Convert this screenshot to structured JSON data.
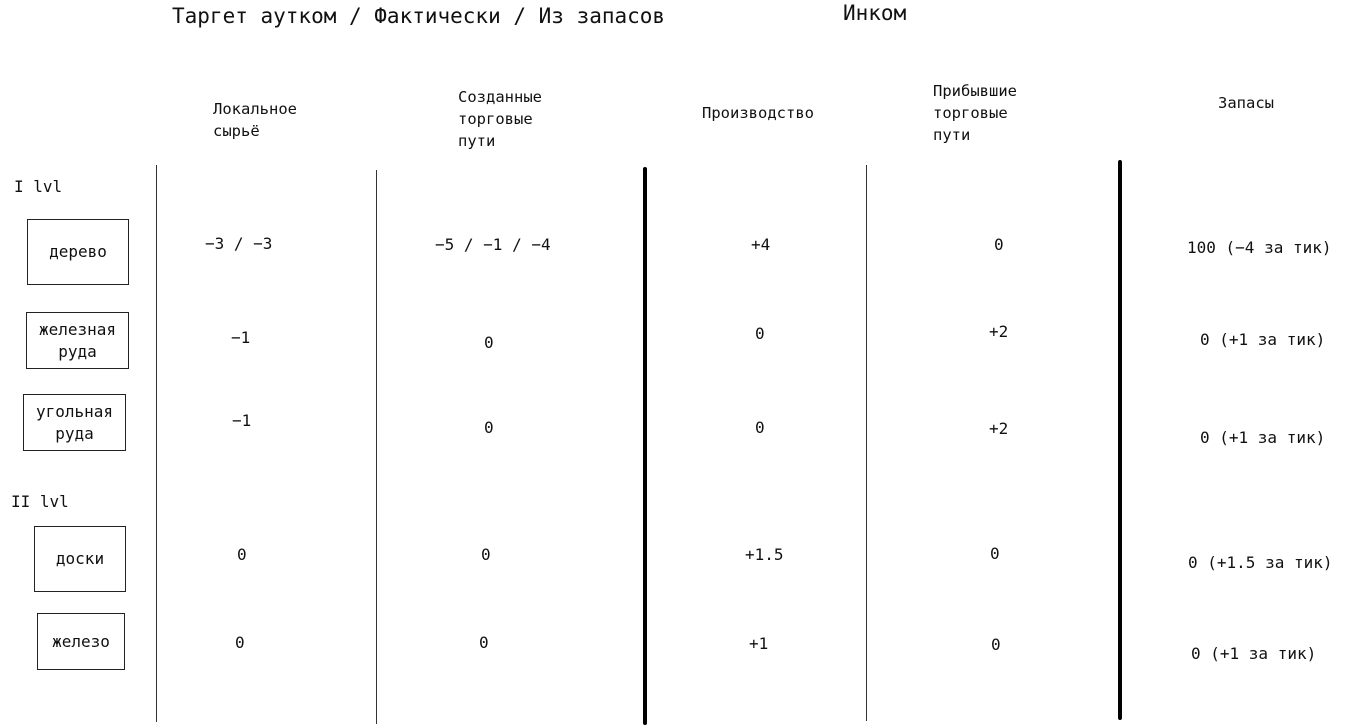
{
  "title": "Таргет аутком / Фактически / Из запасов",
  "nation": "Инком",
  "headers": {
    "local": "Локальное\nсырьё",
    "created": "Созданные\nторговые\nпути",
    "production": "Производство",
    "arrived": "Прибывшие\nторговые\nпути",
    "stock": "Запасы"
  },
  "levels": {
    "l1": "I lvl",
    "l2": "II lvl"
  },
  "rows": [
    {
      "name": "дерево",
      "local": "−3 / −3",
      "created": "−5 / −1 / −4",
      "production": "+4",
      "arrived": "0",
      "stock": "100 (−4 за тик)"
    },
    {
      "name": "железная\nруда",
      "local": "−1",
      "created": "0",
      "production": "0",
      "arrived": "+2",
      "stock": "0 (+1 за тик)"
    },
    {
      "name": "угольная\nруда",
      "local": "−1",
      "created": "0",
      "production": "0",
      "arrived": "+2",
      "stock": "0 (+1 за тик)"
    },
    {
      "name": "доски",
      "local": "0",
      "created": "0",
      "production": "+1.5",
      "arrived": "0",
      "stock": "0 (+1.5 за тик)"
    },
    {
      "name": "железо",
      "local": "0",
      "created": "0",
      "production": "+1",
      "arrived": "0",
      "stock": "0 (+1 за тик)"
    }
  ]
}
